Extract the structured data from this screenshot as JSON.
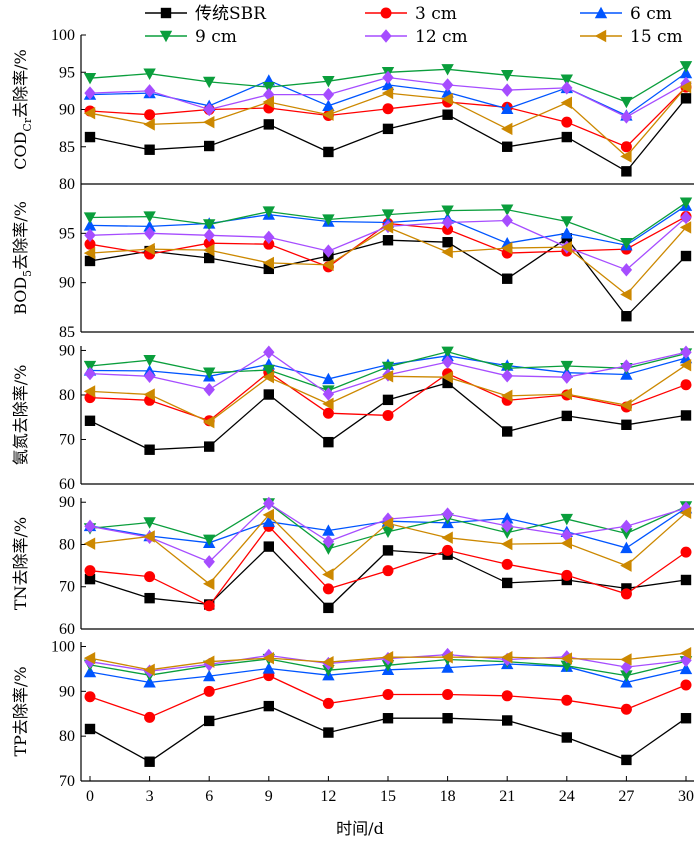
{
  "chart_data": {
    "type": "line",
    "x": [
      0,
      3,
      6,
      9,
      12,
      15,
      18,
      21,
      24,
      27,
      30
    ],
    "xlabel": "时间/d",
    "xticks": [
      "0",
      "3",
      "6",
      "9",
      "12",
      "15",
      "18",
      "21",
      "24",
      "27",
      "30"
    ],
    "legend": [
      {
        "name": "传统SBR",
        "color": "#000000",
        "marker": "square"
      },
      {
        "name": "3 cm",
        "color": "#ff0000",
        "marker": "circle"
      },
      {
        "name": "6 cm",
        "color": "#0055ff",
        "marker": "triangle-up"
      },
      {
        "name": "9 cm",
        "color": "#0a9e3c",
        "marker": "triangle-down"
      },
      {
        "name": "12 cm",
        "color": "#a64dff",
        "marker": "diamond"
      },
      {
        "name": "15 cm",
        "color": "#cc8800",
        "marker": "triangle-left"
      }
    ],
    "panels": [
      {
        "ylabel": "COD",
        "ylabel_sub": "Cr",
        "ylabel_rest": "去除率/%",
        "ylim": [
          80,
          100
        ],
        "yticks": [
          "80",
          "85",
          "90",
          "95",
          "100"
        ],
        "series": [
          {
            "name": "传统SBR",
            "values": [
              86.3,
              84.6,
              85.1,
              88.0,
              84.3,
              87.4,
              89.3,
              85.0,
              86.3,
              81.7,
              91.5
            ]
          },
          {
            "name": "3 cm",
            "values": [
              89.8,
              89.3,
              90.0,
              90.2,
              89.2,
              90.1,
              91.0,
              90.3,
              88.3,
              85.0,
              93.0
            ]
          },
          {
            "name": "6 cm",
            "values": [
              92.0,
              92.2,
              90.5,
              93.9,
              90.5,
              93.3,
              92.3,
              90.1,
              92.9,
              89.2,
              94.9
            ]
          },
          {
            "name": "9 cm",
            "values": [
              94.2,
              94.8,
              93.7,
              93.0,
              93.8,
              95.0,
              95.4,
              94.6,
              94.0,
              91.0,
              95.8
            ]
          },
          {
            "name": "12 cm",
            "values": [
              92.2,
              92.5,
              90.0,
              92.0,
              92.0,
              94.3,
              93.3,
              92.6,
              92.9,
              89.0,
              93.5
            ]
          },
          {
            "name": "15 cm",
            "values": [
              89.5,
              88.0,
              88.3,
              91.0,
              89.3,
              92.2,
              91.4,
              87.4,
              90.9,
              83.7,
              93.0
            ]
          }
        ]
      },
      {
        "ylabel": "BOD",
        "ylabel_sub": "5",
        "ylabel_rest": "去除率/%",
        "ylim": [
          85,
          100
        ],
        "yticks": [
          "85",
          "90",
          "95"
        ],
        "series": [
          {
            "name": "传统SBR",
            "values": [
              92.2,
              93.2,
              92.5,
              91.4,
              92.7,
              94.3,
              94.1,
              90.4,
              94.5,
              86.6,
              92.7
            ]
          },
          {
            "name": "3 cm",
            "values": [
              93.9,
              92.9,
              94.0,
              93.9,
              91.6,
              96.0,
              95.4,
              93.0,
              93.2,
              93.4,
              96.7
            ]
          },
          {
            "name": "6 cm",
            "values": [
              95.8,
              95.7,
              96.0,
              96.9,
              96.2,
              96.1,
              96.5,
              94.0,
              95.0,
              93.8,
              97.8
            ]
          },
          {
            "name": "9 cm",
            "values": [
              96.6,
              96.7,
              95.9,
              97.2,
              96.4,
              96.9,
              97.3,
              97.4,
              96.2,
              94.0,
              98.1
            ]
          },
          {
            "name": "12 cm",
            "values": [
              94.8,
              95.0,
              94.8,
              94.6,
              93.2,
              95.7,
              96.1,
              96.3,
              93.6,
              91.3,
              96.6
            ]
          },
          {
            "name": "15 cm",
            "values": [
              93.0,
              93.4,
              93.3,
              92.0,
              91.8,
              95.6,
              93.1,
              93.5,
              93.6,
              88.8,
              95.6
            ]
          }
        ]
      },
      {
        "ylabel": "氨氮去除率/%",
        "ylabel_sub": "",
        "ylabel_rest": "",
        "ylim": [
          60,
          91
        ],
        "yticks": [
          "60",
          "70",
          "80",
          "90"
        ],
        "series": [
          {
            "name": "传统SBR",
            "values": [
              74.2,
              67.7,
              68.4,
              80.1,
              69.4,
              78.9,
              82.7,
              71.8,
              75.3,
              73.3,
              75.4
            ]
          },
          {
            "name": "3 cm",
            "values": [
              79.4,
              78.8,
              74.2,
              85.1,
              75.9,
              75.4,
              84.8,
              78.8,
              80.0,
              77.3,
              82.3
            ]
          },
          {
            "name": "6 cm",
            "values": [
              85.5,
              85.4,
              84.2,
              86.9,
              83.6,
              86.8,
              88.8,
              86.6,
              85.0,
              84.6,
              88.3
            ]
          },
          {
            "name": "9 cm",
            "values": [
              86.5,
              87.8,
              85.0,
              85.6,
              81.0,
              86.3,
              89.7,
              86.0,
              86.5,
              86.0,
              89.3
            ]
          },
          {
            "name": "12 cm",
            "values": [
              84.8,
              84.2,
              81.2,
              89.6,
              80.2,
              84.5,
              87.4,
              84.3,
              84.0,
              86.5,
              89.6
            ]
          },
          {
            "name": "15 cm",
            "values": [
              80.8,
              80.1,
              73.9,
              84.0,
              78.0,
              84.2,
              84.0,
              79.8,
              80.2,
              77.7,
              86.7
            ]
          }
        ]
      },
      {
        "ylabel": "TN去除率/%",
        "ylabel_sub": "",
        "ylabel_rest": "",
        "ylim": [
          60,
          91
        ],
        "yticks": [
          "60",
          "70",
          "80",
          "90"
        ],
        "series": [
          {
            "name": "传统SBR",
            "values": [
              71.8,
              67.3,
              65.8,
              79.5,
              65.0,
              78.6,
              77.6,
              70.9,
              71.6,
              69.6,
              71.6
            ]
          },
          {
            "name": "3 cm",
            "values": [
              73.8,
              72.4,
              65.5,
              84.3,
              69.5,
              73.8,
              78.6,
              75.3,
              72.7,
              68.3,
              78.2
            ]
          },
          {
            "name": "6 cm",
            "values": [
              84.4,
              82.0,
              80.4,
              85.4,
              83.3,
              85.5,
              85.1,
              86.2,
              83.0,
              79.2,
              88.6
            ]
          },
          {
            "name": "9 cm",
            "values": [
              83.8,
              85.2,
              81.1,
              89.7,
              79.0,
              83.0,
              86.2,
              82.8,
              86.0,
              82.6,
              89.0
            ]
          },
          {
            "name": "12 cm",
            "values": [
              84.3,
              81.7,
              75.9,
              89.7,
              80.7,
              86.0,
              87.2,
              84.4,
              82.2,
              84.3,
              88.6
            ]
          },
          {
            "name": "15 cm",
            "values": [
              80.2,
              81.9,
              70.7,
              87.0,
              72.9,
              85.0,
              81.6,
              80.1,
              80.3,
              75.0,
              87.5
            ]
          }
        ]
      },
      {
        "ylabel": "TP去除率/%",
        "ylabel_sub": "",
        "ylabel_rest": "",
        "ylim": [
          70,
          101
        ],
        "yticks": [
          "70",
          "80",
          "90",
          "100"
        ],
        "series": [
          {
            "name": "传统SBR",
            "values": [
              81.6,
              74.3,
              83.4,
              86.7,
              80.8,
              84.0,
              84.0,
              83.5,
              79.7,
              74.7,
              84.0
            ]
          },
          {
            "name": "3 cm",
            "values": [
              88.8,
              84.2,
              90.0,
              93.5,
              87.3,
              89.3,
              89.3,
              89.0,
              88.0,
              86.0,
              91.4
            ]
          },
          {
            "name": "6 cm",
            "values": [
              94.3,
              92.0,
              93.4,
              95.1,
              93.6,
              94.8,
              95.3,
              96.1,
              95.5,
              92.0,
              95.0
            ]
          },
          {
            "name": "9 cm",
            "values": [
              95.9,
              93.6,
              95.7,
              97.2,
              94.7,
              95.8,
              97.1,
              96.6,
              95.7,
              93.5,
              96.7
            ]
          },
          {
            "name": "12 cm",
            "values": [
              96.6,
              94.5,
              96.0,
              98.0,
              96.2,
              97.3,
              98.2,
              97.1,
              97.7,
              95.4,
              96.9
            ]
          },
          {
            "name": "15 cm",
            "values": [
              97.4,
              94.8,
              96.6,
              97.4,
              96.5,
              97.6,
              97.6,
              97.6,
              97.3,
              97.1,
              98.5
            ]
          }
        ]
      }
    ]
  }
}
